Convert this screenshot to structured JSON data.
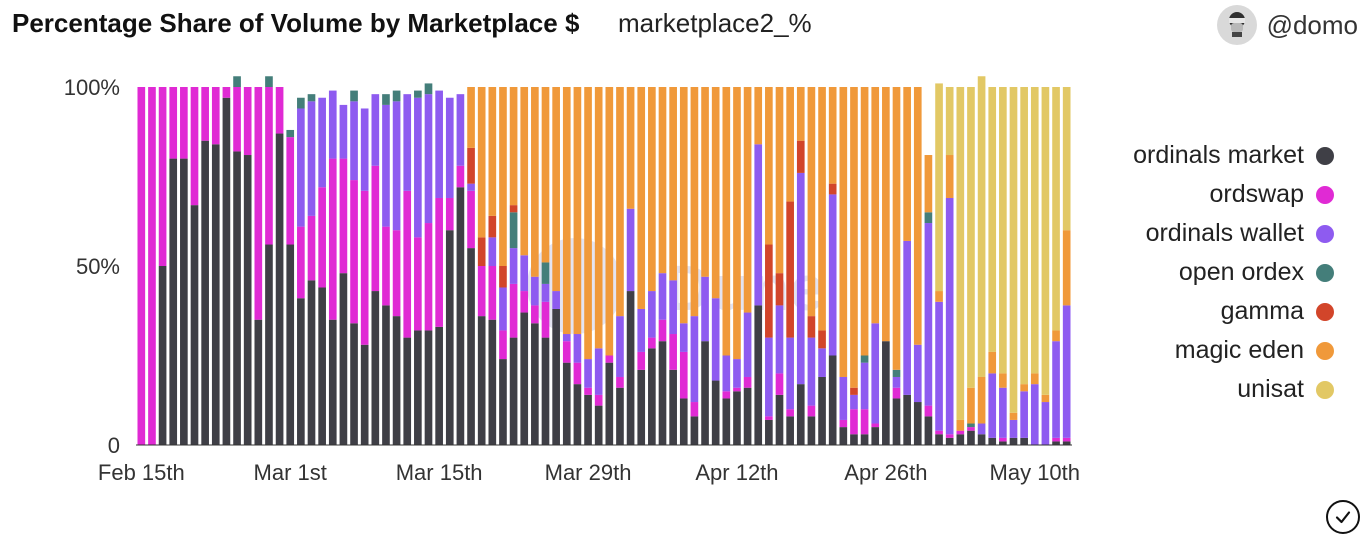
{
  "header": {
    "title": "Percentage Share of Volume by Marketplace $",
    "subtitle": "marketplace2_%",
    "author": "@domo"
  },
  "icons": {
    "avatar": "avatar-icon",
    "check": "check-circle-icon"
  },
  "chart_data": {
    "type": "bar",
    "stacked": true,
    "title": "Percentage Share of Volume by Marketplace $",
    "xlabel": "",
    "ylabel": "",
    "ylim": [
      0,
      100
    ],
    "yticks": [
      "0",
      "50%",
      "100%"
    ],
    "xticks": [
      "Feb 15th",
      "Mar 1st",
      "Mar 15th",
      "Mar 29th",
      "Apr 12th",
      "Apr 26th",
      "May 10th"
    ],
    "legend_position": "right",
    "grid": false,
    "series": [
      {
        "name": "ordinals market",
        "color": "#3f3f46",
        "values": [
          0,
          0,
          50,
          80,
          80,
          67,
          85,
          84,
          97,
          82,
          81,
          35,
          56,
          87,
          56,
          41,
          46,
          44,
          35,
          48,
          34,
          28,
          43,
          39,
          36,
          30,
          32,
          32,
          33,
          60,
          72,
          55,
          36,
          35,
          24,
          30,
          37,
          34,
          30,
          38,
          23,
          17,
          14,
          11,
          23,
          16,
          43,
          21,
          27,
          29,
          21,
          13,
          8,
          29,
          18,
          13,
          15,
          16,
          39,
          7,
          14,
          8,
          17,
          8,
          19,
          25,
          5,
          3,
          3,
          5,
          29,
          13,
          14,
          12,
          8,
          3,
          2,
          3,
          4,
          3,
          2,
          1,
          2,
          2,
          0,
          0,
          1,
          1
        ]
      },
      {
        "name": "ordswap",
        "color": "#e02ad4",
        "values": [
          100,
          100,
          50,
          20,
          20,
          33,
          15,
          16,
          3,
          18,
          19,
          65,
          44,
          13,
          30,
          20,
          18,
          28,
          45,
          32,
          40,
          43,
          35,
          22,
          24,
          41,
          26,
          30,
          36,
          9,
          6,
          16,
          14,
          15,
          8,
          15,
          6,
          5,
          10,
          0,
          6,
          6,
          2,
          3,
          2,
          3,
          0,
          5,
          3,
          6,
          10,
          13,
          4,
          0,
          0,
          2,
          1,
          3,
          0,
          1,
          6,
          2,
          0,
          3,
          0,
          0,
          2,
          7,
          7,
          1,
          0,
          3,
          0,
          0,
          3,
          1,
          1,
          1,
          1,
          0,
          0,
          1,
          0,
          0,
          0,
          0,
          1,
          1
        ]
      },
      {
        "name": "ordinals wallet",
        "color": "#8e5bf0",
        "values": [
          0,
          0,
          0,
          0,
          0,
          0,
          0,
          0,
          0,
          0,
          0,
          0,
          0,
          0,
          0,
          33,
          32,
          25,
          19,
          15,
          22,
          23,
          20,
          34,
          36,
          27,
          39,
          36,
          30,
          28,
          20,
          2,
          0,
          8,
          12,
          10,
          10,
          8,
          5,
          5,
          2,
          8,
          8,
          13,
          0,
          17,
          23,
          12,
          13,
          13,
          15,
          8,
          24,
          18,
          23,
          10,
          8,
          18,
          45,
          22,
          19,
          20,
          59,
          19,
          8,
          45,
          12,
          4,
          13,
          28,
          0,
          3,
          43,
          16,
          51,
          36,
          66,
          0,
          0,
          3,
          18,
          14,
          5,
          13,
          17,
          12,
          27,
          37
        ]
      },
      {
        "name": "open ordex",
        "color": "#447e7a",
        "values": [
          0,
          0,
          0,
          0,
          0,
          0,
          0,
          0,
          0,
          3,
          0,
          0,
          3,
          0,
          2,
          3,
          2,
          0,
          0,
          0,
          3,
          0,
          0,
          3,
          3,
          0,
          2,
          3,
          0,
          0,
          0,
          0,
          0,
          0,
          0,
          10,
          0,
          0,
          6,
          0,
          0,
          0,
          0,
          0,
          0,
          0,
          0,
          0,
          0,
          0,
          0,
          0,
          0,
          0,
          0,
          0,
          0,
          0,
          0,
          0,
          0,
          0,
          0,
          0,
          0,
          0,
          0,
          0,
          2,
          0,
          0,
          2,
          0,
          0,
          3,
          0,
          0,
          0,
          1,
          0,
          0,
          0,
          0,
          0,
          0,
          0,
          0,
          0
        ]
      },
      {
        "name": "gamma",
        "color": "#d2452a",
        "values": [
          0,
          0,
          0,
          0,
          0,
          0,
          0,
          0,
          0,
          0,
          0,
          0,
          0,
          0,
          0,
          0,
          0,
          0,
          0,
          0,
          0,
          0,
          0,
          0,
          0,
          0,
          0,
          0,
          0,
          0,
          0,
          10,
          8,
          6,
          6,
          2,
          0,
          0,
          0,
          0,
          0,
          0,
          0,
          0,
          0,
          0,
          0,
          0,
          0,
          0,
          0,
          0,
          0,
          0,
          0,
          0,
          0,
          0,
          0,
          26,
          9,
          38,
          9,
          6,
          5,
          3,
          0,
          2,
          0,
          0,
          0,
          0,
          0,
          0,
          0,
          0,
          0,
          0,
          0,
          0,
          0,
          0,
          0,
          0,
          0,
          0,
          0,
          0
        ]
      },
      {
        "name": "magic eden",
        "color": "#f0993a",
        "values": [
          0,
          0,
          0,
          0,
          0,
          0,
          0,
          0,
          0,
          0,
          0,
          0,
          0,
          0,
          0,
          0,
          0,
          0,
          0,
          0,
          0,
          0,
          0,
          0,
          0,
          0,
          0,
          0,
          0,
          0,
          0,
          17,
          42,
          36,
          50,
          33,
          47,
          53,
          49,
          57,
          69,
          69,
          76,
          73,
          75,
          64,
          34,
          62,
          57,
          52,
          54,
          66,
          64,
          53,
          59,
          75,
          76,
          63,
          16,
          44,
          52,
          32,
          15,
          64,
          68,
          27,
          81,
          84,
          75,
          66,
          71,
          79,
          43,
          72,
          16,
          3,
          12,
          3,
          10,
          13,
          6,
          4,
          2,
          2,
          3,
          2,
          3,
          21
        ]
      },
      {
        "name": "unisat",
        "color": "#e2c865",
        "values": [
          0,
          0,
          0,
          0,
          0,
          0,
          0,
          0,
          0,
          0,
          0,
          0,
          0,
          0,
          0,
          0,
          0,
          0,
          0,
          0,
          0,
          0,
          0,
          0,
          0,
          0,
          0,
          0,
          0,
          0,
          0,
          0,
          0,
          0,
          0,
          0,
          0,
          0,
          0,
          0,
          0,
          0,
          0,
          0,
          0,
          0,
          0,
          0,
          0,
          0,
          0,
          0,
          0,
          0,
          0,
          0,
          0,
          0,
          0,
          0,
          0,
          0,
          0,
          0,
          0,
          0,
          0,
          0,
          0,
          0,
          0,
          0,
          0,
          0,
          0,
          58,
          19,
          93,
          84,
          84,
          74,
          80,
          91,
          83,
          80,
          86,
          68,
          40
        ]
      }
    ]
  }
}
